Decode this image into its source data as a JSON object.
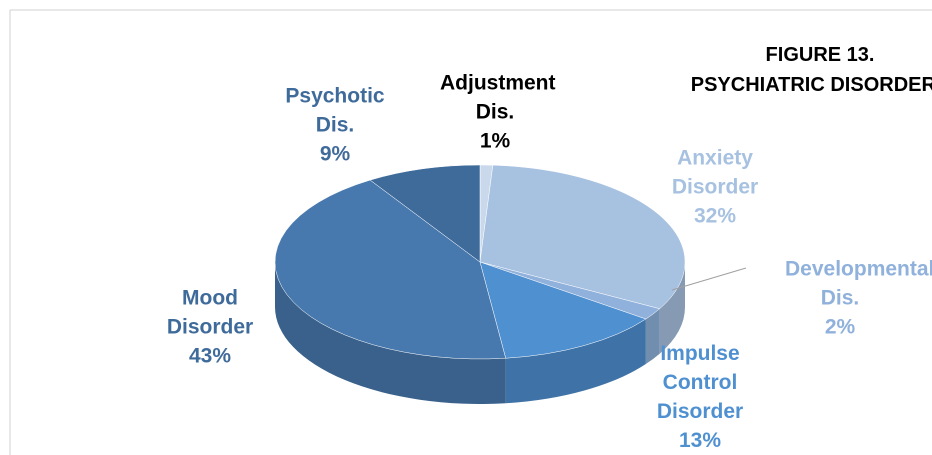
{
  "chart_data": {
    "type": "pie3d",
    "title": [
      "FIGURE 13.",
      "PSYCHIATRIC DISORDERS"
    ],
    "categories": [
      "Adjustment Dis.",
      "Anxiety Disorder",
      "Developmental Dis.",
      "Impulse Control Disorder",
      "Mood Disorder",
      "Psychotic Dis."
    ],
    "values": [
      1,
      32,
      2,
      13,
      43,
      9
    ],
    "value_labels": [
      "1%",
      "32%",
      "2%",
      "13%",
      "43%",
      "9%"
    ],
    "colors": [
      "#c9d8ea",
      "#a7c1e1",
      "#8fb1db",
      "#4f90d1",
      "#4779af",
      "#3f6b9b"
    ]
  }
}
